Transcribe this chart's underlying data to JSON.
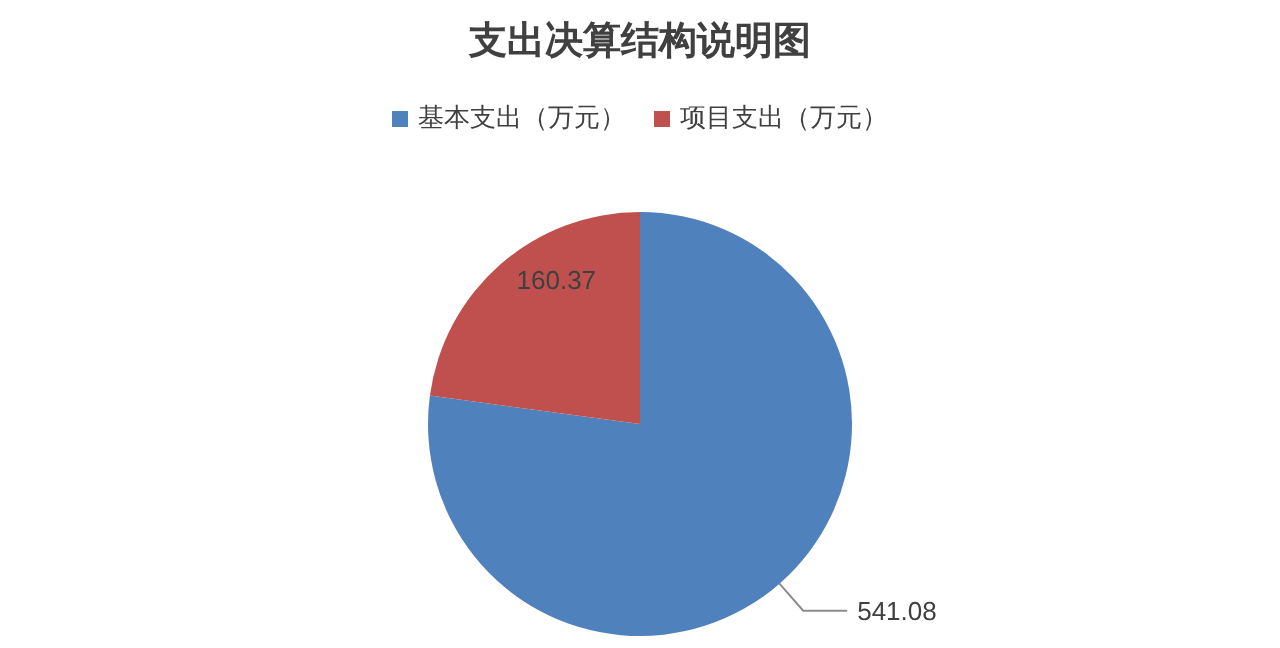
{
  "chart_data": {
    "type": "pie",
    "title": "支出决算结构说明图",
    "categories": [
      "基本支出（万元）",
      "项目支出（万元）"
    ],
    "values": [
      541.08,
      160.37
    ],
    "colors": [
      "#4f81bd",
      "#c0504d"
    ],
    "data_labels": true,
    "legend": "top"
  }
}
